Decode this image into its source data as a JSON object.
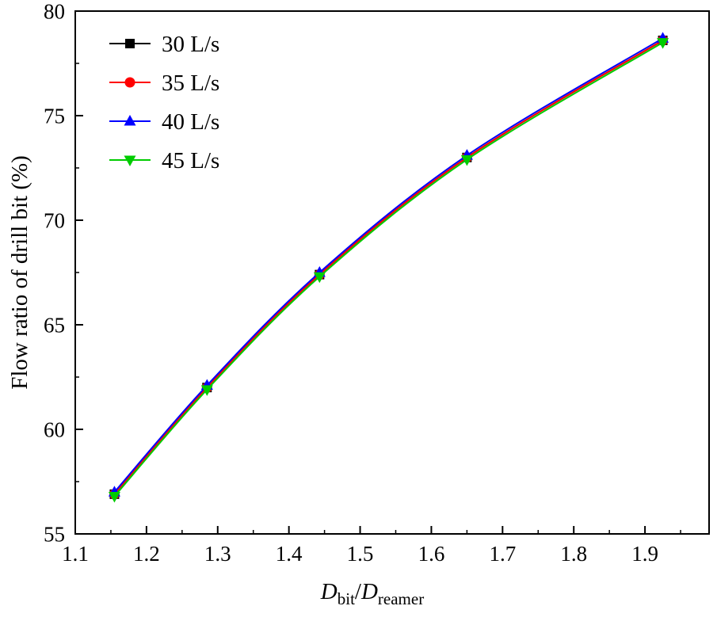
{
  "figure": {
    "background": "#ffffff",
    "border_color": "#000000"
  },
  "chart_data": {
    "type": "line",
    "x": [
      1.155,
      1.285,
      1.443,
      1.65,
      1.925
    ],
    "series": [
      {
        "name": "30 L/s",
        "color": "#000000",
        "marker": "square",
        "values": [
          56.9,
          62.0,
          67.4,
          73.0,
          78.6
        ]
      },
      {
        "name": "35 L/s",
        "color": "#ff0000",
        "marker": "circle",
        "values": [
          56.9,
          62.0,
          67.4,
          73.0,
          78.6
        ]
      },
      {
        "name": "40 L/s",
        "color": "#0000ff",
        "marker": "triangle-up",
        "values": [
          57.0,
          62.1,
          67.5,
          73.1,
          78.7
        ]
      },
      {
        "name": "45 L/s",
        "color": "#00cc00",
        "marker": "triangle-down",
        "values": [
          56.8,
          61.9,
          67.3,
          72.9,
          78.5
        ]
      }
    ],
    "title": "",
    "ylabel": "Flow ratio of drill bit (%)",
    "xlabel_parts": [
      {
        "t": "D",
        "style": "italic"
      },
      {
        "t": "bit",
        "style": "sub"
      },
      {
        "t": "/",
        "style": "normal"
      },
      {
        "t": "D",
        "style": "italic"
      },
      {
        "t": "reamer",
        "style": "sub"
      }
    ],
    "xlim": [
      1.1,
      1.99
    ],
    "ylim": [
      55,
      80
    ],
    "x_ticks": [
      1.1,
      1.2,
      1.3,
      1.4,
      1.5,
      1.6,
      1.7,
      1.8,
      1.9
    ],
    "x_tick_labels": [
      "1.1",
      "1.2",
      "1.3",
      "1.4",
      "1.5",
      "1.6",
      "1.7",
      "1.8",
      "1.9"
    ],
    "y_ticks": [
      55,
      60,
      65,
      70,
      75,
      80
    ],
    "y_tick_labels": [
      "55",
      "60",
      "65",
      "70",
      "75",
      "80"
    ],
    "x_minor_step": 0.05,
    "y_minor_step": 2.5,
    "grid": false,
    "legend_position": "top-left",
    "legend": [
      {
        "label": "30 L/s",
        "color": "#000000",
        "marker": "square"
      },
      {
        "label": "35 L/s",
        "color": "#ff0000",
        "marker": "circle"
      },
      {
        "label": "40 L/s",
        "color": "#0000ff",
        "marker": "triangle-up"
      },
      {
        "label": "45 L/s",
        "color": "#00cc00",
        "marker": "triangle-down"
      }
    ]
  }
}
